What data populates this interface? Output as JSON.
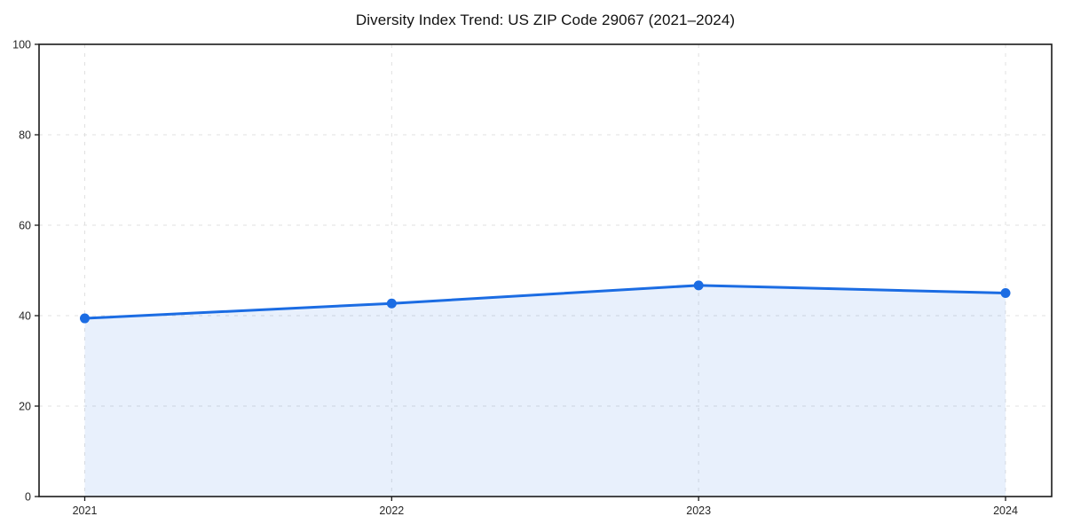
{
  "chart_data": {
    "type": "line",
    "title": "Diversity Index Trend: US ZIP Code 29067 (2021–2024)",
    "categories": [
      "2021",
      "2022",
      "2023",
      "2024"
    ],
    "series": [
      {
        "name": "Diversity Index",
        "values": [
          39.4,
          42.7,
          46.7,
          45.0
        ]
      }
    ],
    "xlabel": "",
    "ylabel": "",
    "ylim": [
      0,
      100
    ],
    "yticks": [
      0,
      20,
      40,
      60,
      80,
      100
    ],
    "grid": true,
    "grid_style": "dashed",
    "legend_position": "none",
    "line_color": "#1b6ce3",
    "marker_color": "#1b6ce3",
    "fill_color": "#1b6ce3",
    "fill_opacity": 0.1,
    "grid_color": "#e0e0e0",
    "axis_color": "#1a1a1a",
    "tick_label_color": "#262626",
    "background": "#ffffff"
  }
}
